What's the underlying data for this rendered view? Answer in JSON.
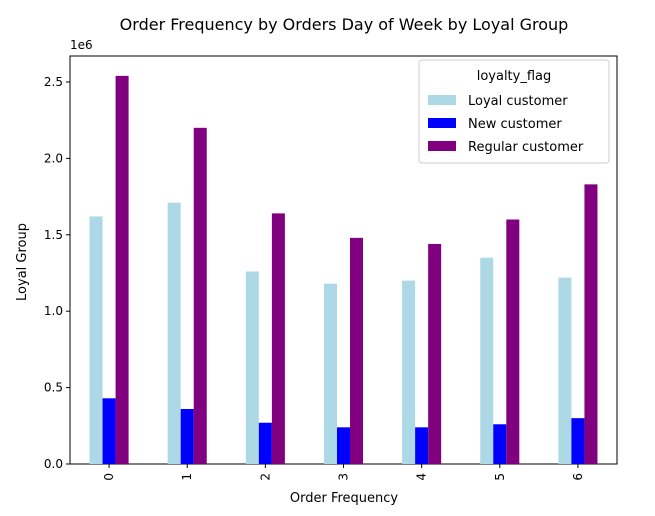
{
  "chart_data": {
    "type": "bar",
    "title": "Order Frequency by Orders Day of Week by Loyal Group",
    "xlabel": "Order Frequency",
    "ylabel": "Loyal Group",
    "y_offset_label": "1e6",
    "categories": [
      "0",
      "1",
      "2",
      "3",
      "4",
      "5",
      "6"
    ],
    "ylim": [
      0,
      2.67
    ],
    "y_ticks": [
      "0.0",
      "0.5",
      "1.0",
      "1.5",
      "2.0",
      "2.5"
    ],
    "grid": false,
    "legend_title": "loyalty_flag",
    "legend_position": "top-right",
    "series": [
      {
        "name": "Loyal customer",
        "color": "#add8e6",
        "values": [
          1.62,
          1.71,
          1.26,
          1.18,
          1.2,
          1.35,
          1.22
        ]
      },
      {
        "name": "New customer",
        "color": "#0000ff",
        "values": [
          0.43,
          0.36,
          0.27,
          0.24,
          0.24,
          0.26,
          0.3
        ]
      },
      {
        "name": "Regular customer",
        "color": "#800080",
        "values": [
          2.54,
          2.2,
          1.64,
          1.48,
          1.44,
          1.6,
          1.83
        ]
      }
    ]
  }
}
